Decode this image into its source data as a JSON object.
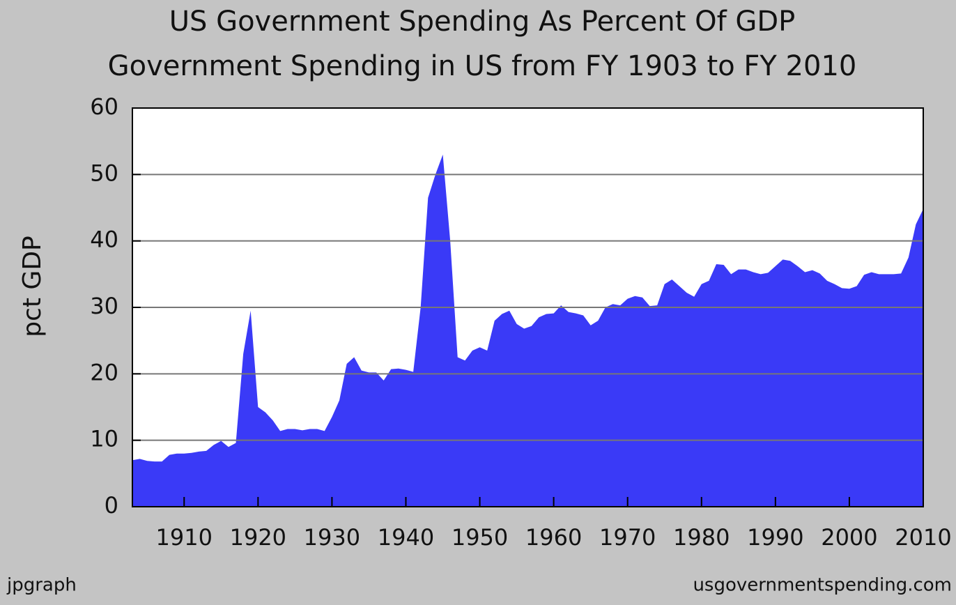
{
  "chart_data": {
    "type": "area",
    "title": "US Government Spending As Percent Of GDP",
    "subtitle": "Government Spending in US from FY 1903 to FY 2010",
    "y_label": "pct GDP",
    "footer_left": "jpgraph",
    "footer_right": "usgovernmentspending.com",
    "x": [
      1903,
      1904,
      1905,
      1906,
      1907,
      1908,
      1909,
      1910,
      1911,
      1912,
      1913,
      1914,
      1915,
      1916,
      1917,
      1918,
      1919,
      1920,
      1921,
      1922,
      1923,
      1924,
      1925,
      1926,
      1927,
      1928,
      1929,
      1930,
      1931,
      1932,
      1933,
      1934,
      1935,
      1936,
      1937,
      1938,
      1939,
      1940,
      1941,
      1942,
      1943,
      1944,
      1945,
      1946,
      1947,
      1948,
      1949,
      1950,
      1951,
      1952,
      1953,
      1954,
      1955,
      1956,
      1957,
      1958,
      1959,
      1960,
      1961,
      1962,
      1963,
      1964,
      1965,
      1966,
      1967,
      1968,
      1969,
      1970,
      1971,
      1972,
      1973,
      1974,
      1975,
      1976,
      1977,
      1978,
      1979,
      1980,
      1981,
      1982,
      1983,
      1984,
      1985,
      1986,
      1987,
      1988,
      1989,
      1990,
      1991,
      1992,
      1993,
      1994,
      1995,
      1996,
      1997,
      1998,
      1999,
      2000,
      2001,
      2002,
      2003,
      2004,
      2005,
      2006,
      2007,
      2008,
      2009,
      2010
    ],
    "values": [
      7.0,
      7.2,
      6.9,
      6.8,
      6.8,
      7.8,
      8.0,
      8.0,
      8.1,
      8.3,
      8.4,
      9.3,
      9.9,
      9.0,
      9.6,
      23,
      29.5,
      15,
      14.2,
      13,
      11.4,
      11.7,
      11.7,
      11.5,
      11.7,
      11.7,
      11.4,
      13.5,
      16,
      21.5,
      22.5,
      20.5,
      20.2,
      20.2,
      19,
      20.7,
      20.8,
      20.6,
      20.3,
      30,
      46.5,
      50,
      53,
      40,
      22.5,
      22,
      23.5,
      24,
      23.5,
      28,
      29,
      29.5,
      27.5,
      26.8,
      27.2,
      28.5,
      29,
      29.1,
      30.3,
      29.3,
      29.1,
      28.8,
      27.3,
      28,
      30,
      30.5,
      30.3,
      31.3,
      31.7,
      31.5,
      30.2,
      30.3,
      33.5,
      34.2,
      33.2,
      32.2,
      31.6,
      33.5,
      34,
      36.5,
      36.4,
      35,
      35.7,
      35.7,
      35.3,
      35,
      35.2,
      36.2,
      37.2,
      37.0,
      36.2,
      35.3,
      35.6,
      35.1,
      34.0,
      33.5,
      32.9,
      32.8,
      33.2,
      34.9,
      35.3,
      35.0,
      35.0,
      35.0,
      35.1,
      37.5,
      42.5,
      44.8
    ],
    "color": "#3a3af7",
    "xlim": [
      1903,
      2010
    ],
    "xticks": [
      1910,
      1920,
      1930,
      1940,
      1950,
      1960,
      1970,
      1980,
      1990,
      2000,
      2010
    ],
    "ylim": [
      0,
      60
    ],
    "yticks": [
      0,
      10,
      20,
      30,
      40,
      50,
      60
    ],
    "grid": true
  }
}
